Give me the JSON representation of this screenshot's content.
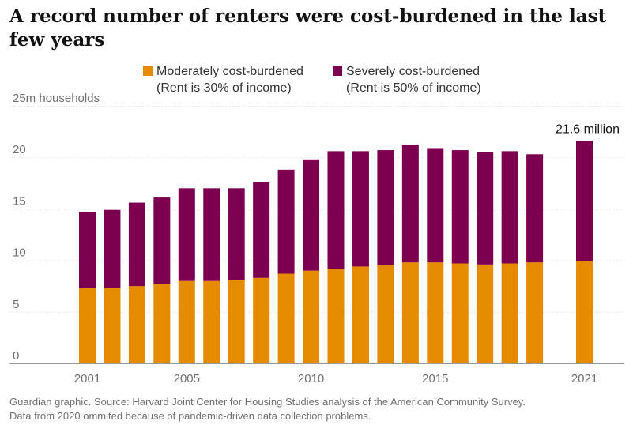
{
  "title": "A record number of renters were cost-burdened in the last few years",
  "legend": [
    {
      "line1": "Moderately cost-burdened",
      "line2": "(Rent is 30% of income)",
      "color": "#e68a00"
    },
    {
      "line1": "Severely cost-burdened",
      "line2": "(Rent is 50% of income)",
      "color": "#7d0050"
    }
  ],
  "footer": {
    "line1": "Guardian graphic. Source: Harvard Joint Center for Housing Studies analysis of the American Community Survey.",
    "line2": "Data from 2020 ommited because of pandemic-driven data collection problems."
  },
  "chart_data": {
    "type": "bar",
    "stacked": true,
    "title": "A record number of renters were cost-burdened in the last few years",
    "ylabel": "",
    "ylim": [
      0,
      25
    ],
    "yticks": [
      {
        "value": 0,
        "label": "0"
      },
      {
        "value": 5,
        "label": "5"
      },
      {
        "value": 10,
        "label": "10"
      },
      {
        "value": 15,
        "label": "15"
      },
      {
        "value": 20,
        "label": "20"
      },
      {
        "value": 25,
        "label": "25m households"
      }
    ],
    "xticks": [
      "2001",
      "2005",
      "2010",
      "2015",
      "2021"
    ],
    "categories": [
      2001,
      2002,
      2003,
      2004,
      2005,
      2006,
      2007,
      2008,
      2009,
      2010,
      2011,
      2012,
      2013,
      2014,
      2015,
      2016,
      2017,
      2018,
      2019,
      2021
    ],
    "series": [
      {
        "name": "Moderately cost-burdened",
        "color": "#e68a00",
        "values": [
          7.3,
          7.3,
          7.5,
          7.7,
          8.0,
          8.0,
          8.1,
          8.3,
          8.7,
          9.0,
          9.2,
          9.4,
          9.5,
          9.8,
          9.8,
          9.7,
          9.6,
          9.7,
          9.8,
          9.9
        ]
      },
      {
        "name": "Severely cost-burdened",
        "color": "#7d0050",
        "values": [
          7.4,
          7.6,
          8.1,
          8.4,
          9.0,
          9.0,
          8.9,
          9.3,
          10.1,
          10.8,
          11.4,
          11.2,
          11.2,
          11.4,
          11.1,
          11.0,
          10.9,
          10.9,
          10.5,
          11.7
        ]
      }
    ],
    "annotations": [
      {
        "text": "21.6 million",
        "category": 2021
      }
    ],
    "grid": true,
    "legend_position": "top"
  }
}
